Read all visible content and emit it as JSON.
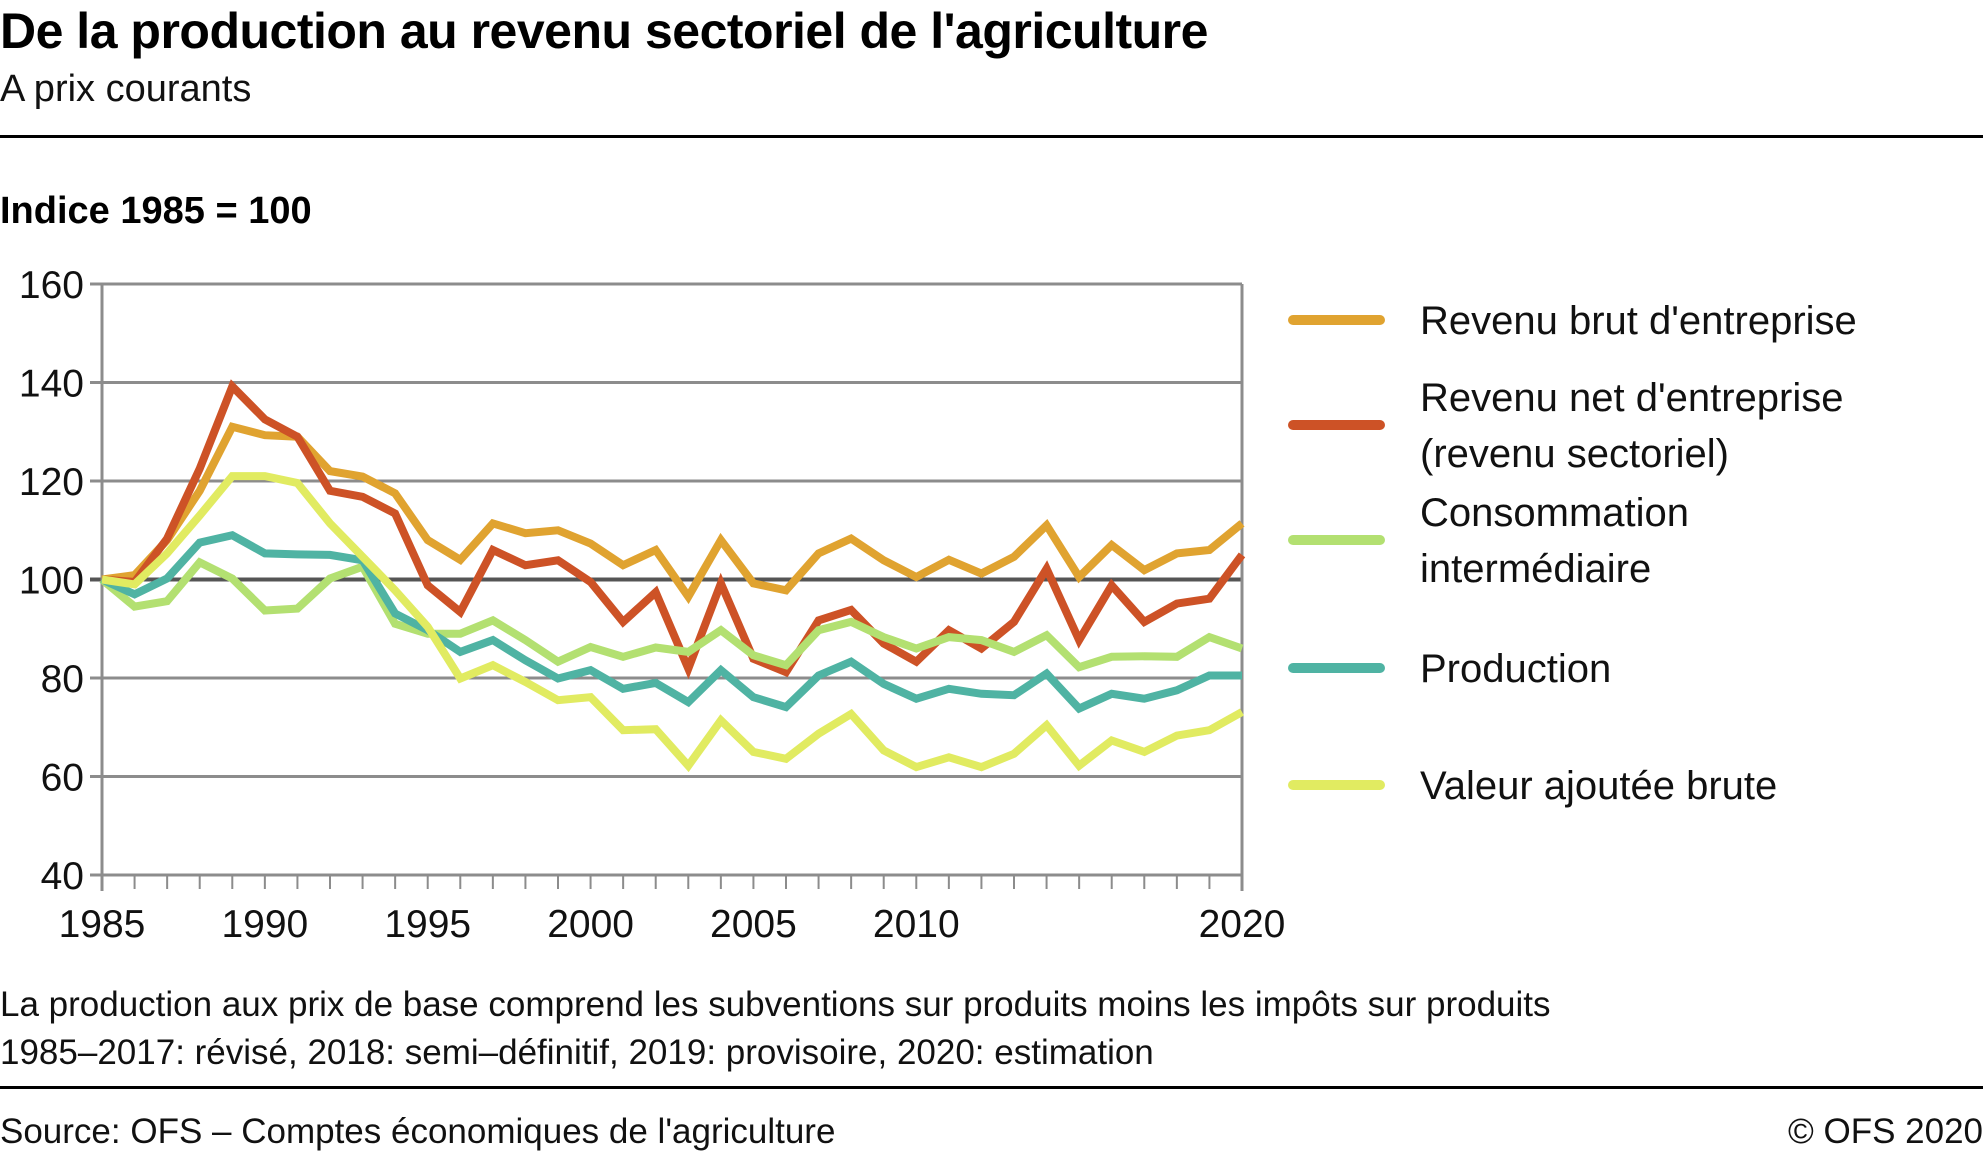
{
  "header": {
    "title": "De la production au revenu sectoriel de l'agriculture",
    "subtitle": "A prix courants",
    "unit_label": "Indice 1985 = 100"
  },
  "footer": {
    "note1": "La production aux prix de base comprend les subventions sur produits moins les impôts sur produits",
    "note2": "1985–2017: révisé, 2018: semi–définitif, 2019: provisoire, 2020: estimation",
    "source": "Source: OFS – Comptes économiques de l'agriculture",
    "copyright": "© OFS 2020"
  },
  "chart_data": {
    "type": "line",
    "title": "De la production au revenu sectoriel de l'agriculture",
    "subtitle": "A prix courants",
    "ylabel": "Indice 1985 = 100",
    "xlabel": "",
    "ylim": [
      40,
      160
    ],
    "xlim": [
      1985,
      2020
    ],
    "yticks": [
      40,
      60,
      80,
      100,
      120,
      140,
      160
    ],
    "xtick_labels": [
      "1985",
      "1990",
      "1995",
      "2000",
      "2005",
      "2010",
      "2020"
    ],
    "grid": true,
    "reference_line": 100,
    "legend_position": "right",
    "x": [
      1985,
      1986,
      1987,
      1988,
      1989,
      1990,
      1991,
      1992,
      1993,
      1994,
      1995,
      1996,
      1997,
      1998,
      1999,
      2000,
      2001,
      2002,
      2003,
      2004,
      2005,
      2006,
      2007,
      2008,
      2009,
      2010,
      2011,
      2012,
      2013,
      2014,
      2015,
      2016,
      2017,
      2018,
      2019,
      2020
    ],
    "series": [
      {
        "name": "Revenu brut d'entreprise",
        "legend_lines": [
          "Revenu brut d'entreprise"
        ],
        "color": "#E0A330",
        "values": [
          100,
          100.9,
          108,
          118,
          131,
          129.3,
          129,
          122,
          120.9,
          117.5,
          108,
          104,
          111.4,
          109.4,
          110,
          107.3,
          102.9,
          106,
          96.5,
          108,
          99.2,
          97.8,
          105.3,
          108.3,
          103.9,
          100.5,
          104,
          101.2,
          104.6,
          111,
          100.5,
          107,
          101.9,
          105.3,
          106,
          111.4
        ]
      },
      {
        "name": "Revenu net d'entreprise (revenu sectoriel)",
        "legend_lines": [
          "Revenu net d'entreprise",
          "(revenu sectoriel)"
        ],
        "color": "#CD5226",
        "values": [
          100,
          99.5,
          108.3,
          122.5,
          139.2,
          132.5,
          129,
          118,
          116.8,
          113.4,
          98.8,
          93.4,
          106,
          102.9,
          103.9,
          99.5,
          91.4,
          97.4,
          81.9,
          99.2,
          83.9,
          81.2,
          91.7,
          93.8,
          87,
          83.3,
          89.7,
          86,
          91.4,
          102.2,
          87.7,
          98.8,
          91.4,
          95.1,
          96.1,
          105
        ]
      },
      {
        "name": "Consommation intermédiaire",
        "legend_lines": [
          "Consommation",
          "intermédiaire"
        ],
        "color": "#B3E071",
        "values": [
          100,
          94.5,
          95.6,
          103.5,
          100.2,
          93.7,
          94.1,
          100.2,
          102.6,
          91,
          89,
          89,
          91.7,
          87.7,
          83.3,
          86.3,
          84.3,
          86.2,
          85.3,
          89.7,
          84.6,
          82.6,
          89.7,
          91.4,
          88.3,
          86,
          88.3,
          87.7,
          85.3,
          88.7,
          82.2,
          84.3,
          84.4,
          84.3,
          88.3,
          86
        ]
      },
      {
        "name": "Production",
        "legend_lines": [
          "Production"
        ],
        "color": "#4FB3A3",
        "values": [
          100,
          97,
          100.2,
          107.5,
          109,
          105.3,
          105.1,
          105,
          103.9,
          93.1,
          89.7,
          85.3,
          87.7,
          83.6,
          79.9,
          81.6,
          77.8,
          79,
          75.1,
          81.6,
          76.1,
          74.1,
          80.5,
          83.3,
          78.8,
          75.8,
          77.8,
          76.8,
          76.5,
          80.9,
          73.8,
          76.8,
          75.8,
          77.5,
          80.5,
          80.5
        ]
      },
      {
        "name": "Valeur ajoutée brute",
        "legend_lines": [
          "Valeur ajoutée brute"
        ],
        "color": "#E1EB61",
        "values": [
          100,
          99,
          105.3,
          113,
          121,
          121,
          119.6,
          111.4,
          104.6,
          97.8,
          90.4,
          79.9,
          82.6,
          79.2,
          75.5,
          76.1,
          69.4,
          69.6,
          62.2,
          71.4,
          65,
          63.6,
          68.7,
          72.7,
          65.3,
          61.9,
          63.9,
          61.9,
          64.6,
          70.4,
          62.2,
          67.3,
          65,
          68.3,
          69.4,
          73.1
        ]
      }
    ]
  }
}
